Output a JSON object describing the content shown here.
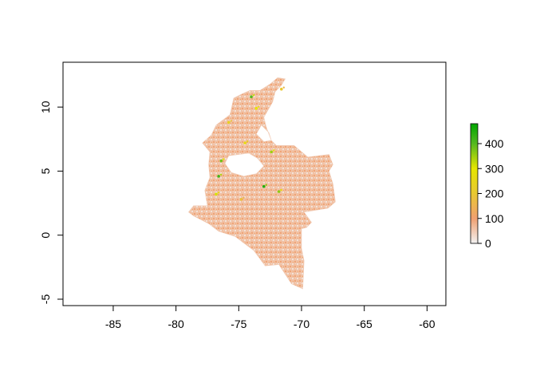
{
  "chart_data": {
    "type": "heatmap",
    "xlim": [
      -89,
      -58.5
    ],
    "ylim": [
      -5.5,
      13.5
    ],
    "x_ticks": [
      -85,
      -80,
      -75,
      -70,
      -65,
      -60
    ],
    "x_tick_labels": [
      "-85",
      "-80",
      "-75",
      "-70",
      "-65",
      "-60"
    ],
    "y_ticks": [
      -5,
      0,
      5,
      10
    ],
    "y_tick_labels": [
      "-5",
      "0",
      "5",
      "10"
    ],
    "legend": {
      "placement": "right",
      "min": 0,
      "max": 480,
      "ticks": [
        0,
        100,
        200,
        300,
        400
      ],
      "tick_labels": [
        "0",
        "100",
        "200",
        "300",
        "400"
      ],
      "color_stops": [
        {
          "value": 0,
          "color": "#f2f2f2"
        },
        {
          "value": 100,
          "color": "#f0a070"
        },
        {
          "value": 200,
          "color": "#e8c832"
        },
        {
          "value": 300,
          "color": "#e6e600"
        },
        {
          "value": 400,
          "color": "#55b820"
        },
        {
          "value": 480,
          "color": "#00a600"
        }
      ]
    },
    "region": {
      "description_free": true,
      "outline": [
        [
          -77.5,
          2.3
        ],
        [
          -77.7,
          3.5
        ],
        [
          -77.3,
          4.5
        ],
        [
          -77.4,
          5.5
        ],
        [
          -77.3,
          6.5
        ],
        [
          -77.9,
          7.2
        ],
        [
          -77.2,
          7.8
        ],
        [
          -76.8,
          8.6
        ],
        [
          -75.7,
          9.4
        ],
        [
          -75.4,
          10.7
        ],
        [
          -74.8,
          11.0
        ],
        [
          -74.1,
          11.3
        ],
        [
          -73.3,
          11.3
        ],
        [
          -72.5,
          11.8
        ],
        [
          -71.9,
          12.3
        ],
        [
          -71.3,
          12.2
        ],
        [
          -71.6,
          11.7
        ],
        [
          -72.1,
          11.2
        ],
        [
          -72.3,
          10.4
        ],
        [
          -73.0,
          9.2
        ],
        [
          -72.8,
          8.4
        ],
        [
          -72.4,
          7.4
        ],
        [
          -72.0,
          7.0
        ],
        [
          -70.6,
          7.0
        ],
        [
          -69.5,
          6.1
        ],
        [
          -67.8,
          6.3
        ],
        [
          -67.5,
          5.5
        ],
        [
          -67.8,
          5.0
        ],
        [
          -67.5,
          4.0
        ],
        [
          -67.3,
          2.6
        ],
        [
          -67.9,
          2.1
        ],
        [
          -69.8,
          1.8
        ],
        [
          -69.2,
          1.0
        ],
        [
          -69.6,
          0.6
        ],
        [
          -70.0,
          0.5
        ],
        [
          -70.0,
          -1.0
        ],
        [
          -69.8,
          -2.0
        ],
        [
          -69.9,
          -4.2
        ],
        [
          -70.8,
          -3.8
        ],
        [
          -71.8,
          -2.3
        ],
        [
          -72.9,
          -2.4
        ],
        [
          -73.8,
          -1.2
        ],
        [
          -75.3,
          -0.1
        ],
        [
          -76.6,
          0.3
        ],
        [
          -77.4,
          0.9
        ],
        [
          -78.6,
          1.5
        ],
        [
          -79.0,
          1.8
        ],
        [
          -78.6,
          2.3
        ]
      ],
      "gaps": [
        [
          [
            -75.8,
            6.2
          ],
          [
            -74.2,
            6.4
          ],
          [
            -73.5,
            6.0
          ],
          [
            -73.0,
            5.4
          ],
          [
            -73.6,
            4.8
          ],
          [
            -74.6,
            4.6
          ],
          [
            -75.6,
            4.9
          ],
          [
            -76.1,
            5.6
          ]
        ],
        [
          [
            -73.2,
            8.6
          ],
          [
            -72.6,
            8.0
          ],
          [
            -72.4,
            7.4
          ],
          [
            -73.0,
            7.3
          ],
          [
            -73.6,
            7.9
          ]
        ]
      ],
      "hotspots": [
        {
          "x": -76.6,
          "y": 4.6,
          "value": 420
        },
        {
          "x": -76.4,
          "y": 5.8,
          "value": 380
        },
        {
          "x": -76.8,
          "y": 3.2,
          "value": 310
        },
        {
          "x": -73.0,
          "y": 3.8,
          "value": 450
        },
        {
          "x": -71.8,
          "y": 3.4,
          "value": 360
        },
        {
          "x": -74.0,
          "y": 10.8,
          "value": 400
        },
        {
          "x": -73.6,
          "y": 9.9,
          "value": 300
        },
        {
          "x": -72.4,
          "y": 6.5,
          "value": 350
        },
        {
          "x": -74.5,
          "y": 7.2,
          "value": 260
        },
        {
          "x": -75.8,
          "y": 8.8,
          "value": 230
        },
        {
          "x": -71.6,
          "y": 11.4,
          "value": 200
        },
        {
          "x": -74.8,
          "y": 2.8,
          "value": 180
        }
      ]
    }
  }
}
